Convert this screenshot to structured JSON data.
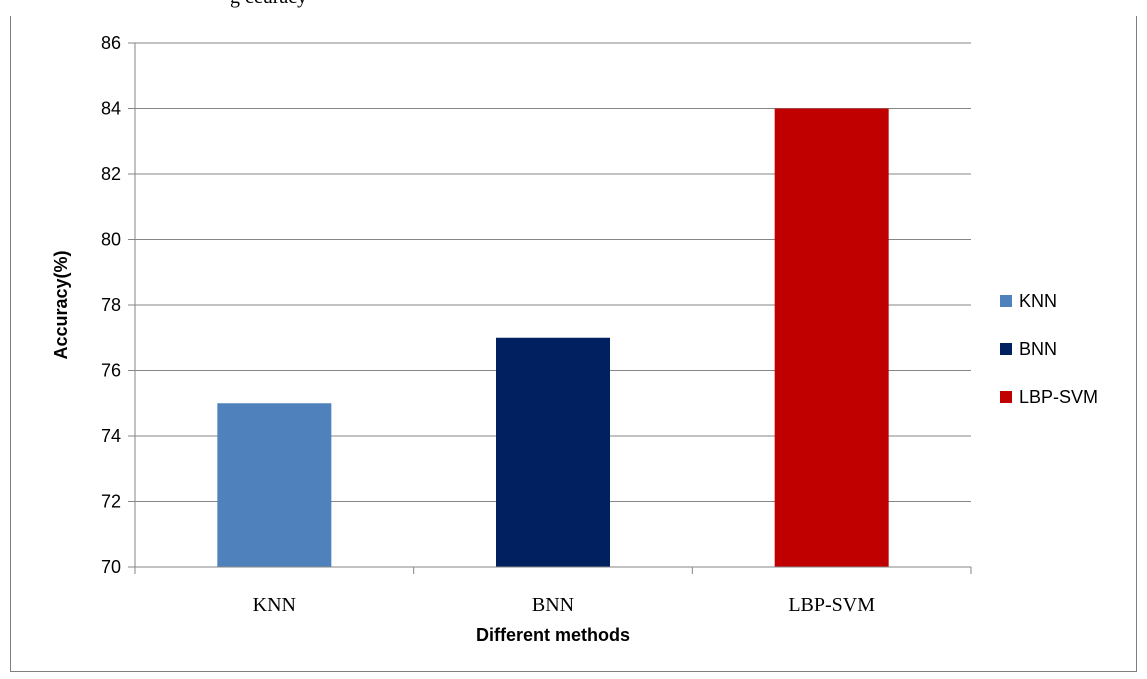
{
  "caption_fragment": "g    ccuracy",
  "chart_data": {
    "type": "bar",
    "categories": [
      "KNN",
      "BNN",
      "LBP-SVM"
    ],
    "values": [
      75,
      77,
      84
    ],
    "colors": [
      "#4f81bd",
      "#002060",
      "#c00000"
    ],
    "title": "",
    "xlabel": "Different methods",
    "ylabel": "Accuracy(%)",
    "ylim": [
      70,
      86
    ],
    "yticks": [
      "70",
      "72",
      "74",
      "76",
      "78",
      "80",
      "82",
      "84",
      "86"
    ],
    "grid": true,
    "legend": {
      "placement": "right",
      "entries": [
        "KNN",
        "BNN",
        "LBP-SVM"
      ]
    }
  }
}
